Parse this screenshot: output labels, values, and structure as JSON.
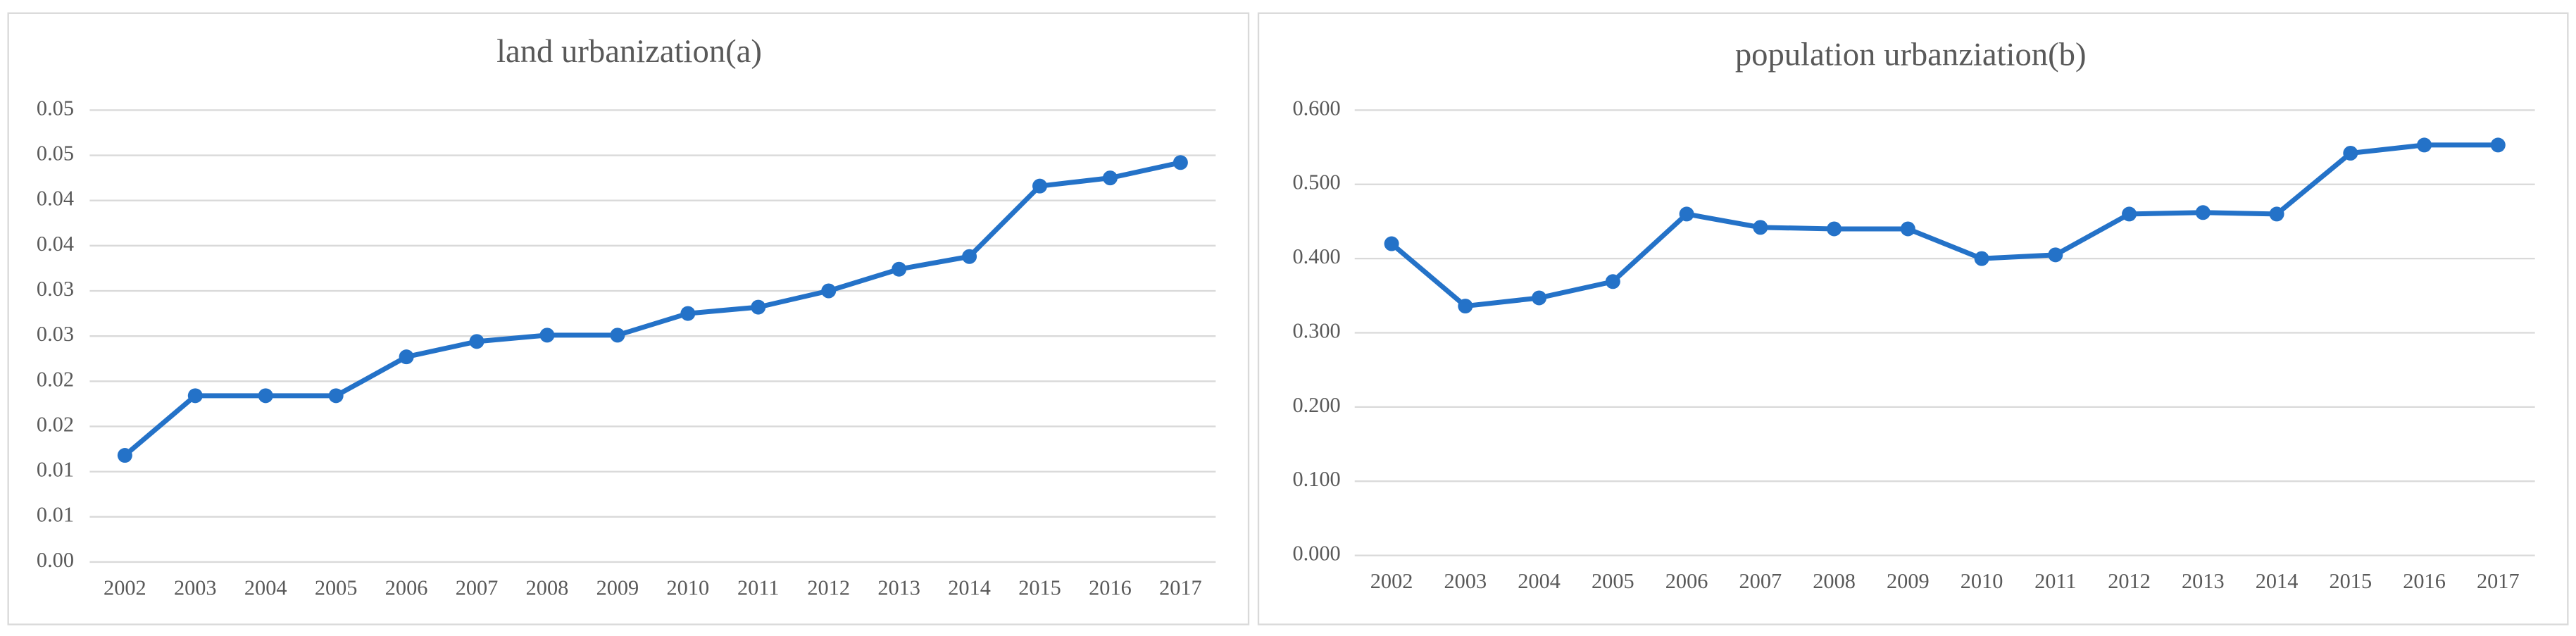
{
  "chart_data": [
    {
      "type": "line",
      "title": "land urbanization(a)",
      "categories": [
        "2002",
        "2003",
        "2004",
        "2005",
        "2006",
        "2007",
        "2008",
        "2009",
        "2010",
        "2011",
        "2012",
        "2013",
        "2014",
        "2015",
        "2016",
        "2017"
      ],
      "values": [
        0.0118,
        0.0184,
        0.0184,
        0.0184,
        0.0227,
        0.0244,
        0.0251,
        0.0251,
        0.0275,
        0.0282,
        0.03,
        0.0324,
        0.0338,
        0.0416,
        0.0425,
        0.0442
      ],
      "color": "#2472c8",
      "ylim": [
        0,
        0.05
      ],
      "yticks": [
        {
          "value": 0,
          "label": "0.00"
        },
        {
          "value": 0.005,
          "label": "0.01"
        },
        {
          "value": 0.01,
          "label": "0.01"
        },
        {
          "value": 0.015,
          "label": "0.02"
        },
        {
          "value": 0.02,
          "label": "0.02"
        },
        {
          "value": 0.025,
          "label": "0.03"
        },
        {
          "value": 0.03,
          "label": "0.03"
        },
        {
          "value": 0.035,
          "label": "0.04"
        },
        {
          "value": 0.04,
          "label": "0.04"
        },
        {
          "value": 0.045,
          "label": "0.05"
        },
        {
          "value": 0.05,
          "label": "0.05"
        }
      ],
      "grid": true
    },
    {
      "type": "line",
      "title": "population urbanziation(b)",
      "categories": [
        "2002",
        "2003",
        "2004",
        "2005",
        "2006",
        "2007",
        "2008",
        "2009",
        "2010",
        "2011",
        "2012",
        "2013",
        "2014",
        "2015",
        "2016",
        "2017"
      ],
      "values": [
        0.42,
        0.336,
        0.347,
        0.369,
        0.46,
        0.442,
        0.44,
        0.44,
        0.4,
        0.405,
        0.46,
        0.462,
        0.46,
        0.542,
        0.553,
        0.553
      ],
      "color": "#2472c8",
      "ylim": [
        0,
        0.6
      ],
      "yticks": [
        {
          "value": 0,
          "label": "0.000"
        },
        {
          "value": 0.1,
          "label": "0.100"
        },
        {
          "value": 0.2,
          "label": "0.200"
        },
        {
          "value": 0.3,
          "label": "0.300"
        },
        {
          "value": 0.4,
          "label": "0.400"
        },
        {
          "value": 0.5,
          "label": "0.500"
        },
        {
          "value": 0.6,
          "label": "0.600"
        }
      ],
      "grid": true
    }
  ]
}
